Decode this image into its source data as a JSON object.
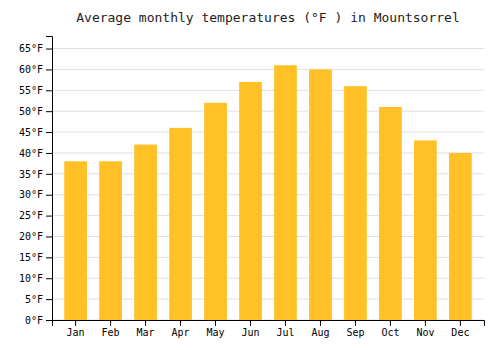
{
  "chart_data": {
    "type": "bar",
    "title": "Average monthly temperatures (°F ) in Mountsorrel",
    "categories": [
      "Jan",
      "Feb",
      "Mar",
      "Apr",
      "May",
      "Jun",
      "Jul",
      "Aug",
      "Sep",
      "Oct",
      "Nov",
      "Dec"
    ],
    "values": [
      38,
      38,
      42,
      46,
      52,
      57,
      61,
      60,
      56,
      51,
      43,
      40
    ],
    "color": "#FFC125",
    "ylim": [
      0,
      68
    ],
    "yticks": [
      {
        "value": 0,
        "label": "0°F"
      },
      {
        "value": 5,
        "label": "5°F"
      },
      {
        "value": 10,
        "label": "10°F"
      },
      {
        "value": 15,
        "label": "15°F"
      },
      {
        "value": 20,
        "label": "20°F"
      },
      {
        "value": 25,
        "label": "25°F"
      },
      {
        "value": 30,
        "label": "30°F"
      },
      {
        "value": 35,
        "label": "35°F"
      },
      {
        "value": 40,
        "label": "40°F"
      },
      {
        "value": 45,
        "label": "45°F"
      },
      {
        "value": 50,
        "label": "50°F"
      },
      {
        "value": 55,
        "label": "55°F"
      },
      {
        "value": 60,
        "label": "60°F"
      },
      {
        "value": 65,
        "label": "65°F"
      }
    ],
    "grid": true
  }
}
